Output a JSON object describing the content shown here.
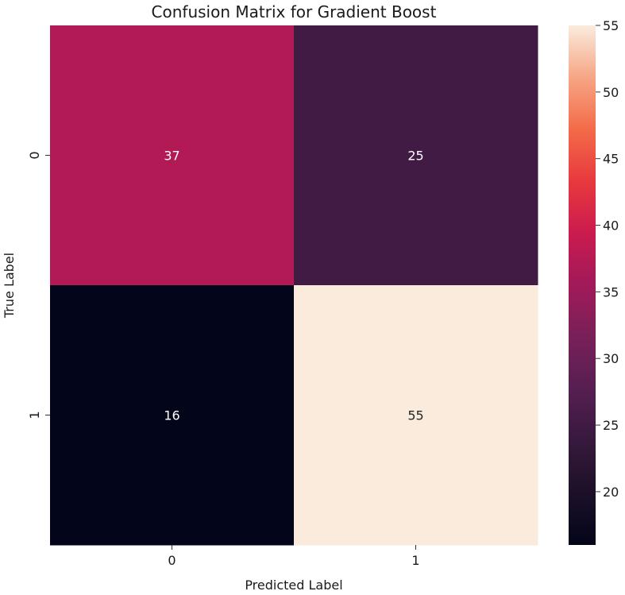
{
  "chart_data": {
    "type": "heatmap",
    "title": "Confusion Matrix for Gradient Boost",
    "xlabel": "Predicted Label",
    "ylabel": "True Label",
    "x_categories": [
      "0",
      "1"
    ],
    "y_categories": [
      "0",
      "1"
    ],
    "values": [
      [
        37,
        25
      ],
      [
        16,
        55
      ]
    ],
    "colorbar": {
      "range": [
        16,
        55
      ],
      "ticks": [
        "20",
        "25",
        "30",
        "35",
        "40",
        "45",
        "50",
        "55"
      ],
      "colormap": "rocket"
    },
    "grid": false
  }
}
